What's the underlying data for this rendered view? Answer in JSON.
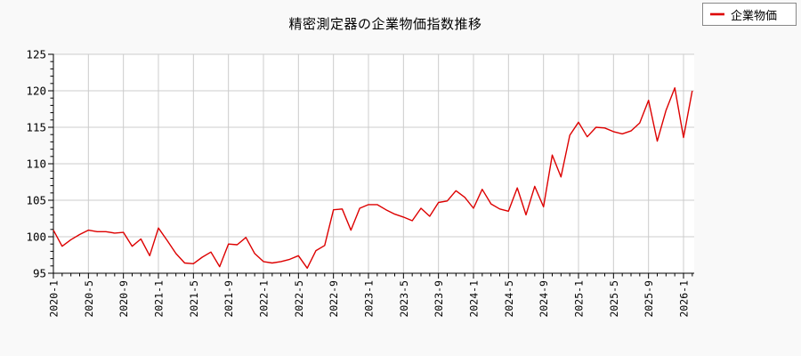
{
  "title": "精密測定器の企業物価指数推移",
  "legend": {
    "label": "企業物価"
  },
  "colors": {
    "line": "#dd0000",
    "grid": "#cccccc",
    "axis": "#000000",
    "plot_background": "#ffffff",
    "page_background": "#f9f9f9",
    "legend_border": "#888888",
    "text": "#000000"
  },
  "chart_data": {
    "type": "line",
    "title": "精密測定器の企業物価指数推移",
    "xlabel": "",
    "ylabel": "",
    "grid": true,
    "legend_position": "top-right-outside",
    "ylim": [
      95,
      125
    ],
    "y_ticks": [
      95,
      100,
      105,
      110,
      115,
      120,
      125
    ],
    "y_minor_step": 1,
    "x_tick_interval_months": 4,
    "x_tick_labels": [
      "2020-1",
      "2020-5",
      "2020-9",
      "2021-1",
      "2021-5",
      "2021-9",
      "2022-1",
      "2022-5",
      "2022-9",
      "2023-1",
      "2023-5",
      "2023-9",
      "2024-1",
      "2024-5",
      "2024-9",
      "2025-1",
      "2025-5",
      "2025-9",
      "2026-1"
    ],
    "categories": [
      "2020-1",
      "2020-2",
      "2020-3",
      "2020-4",
      "2020-5",
      "2020-6",
      "2020-7",
      "2020-8",
      "2020-9",
      "2020-10",
      "2020-11",
      "2020-12",
      "2021-1",
      "2021-2",
      "2021-3",
      "2021-4",
      "2021-5",
      "2021-6",
      "2021-7",
      "2021-8",
      "2021-9",
      "2021-10",
      "2021-11",
      "2021-12",
      "2022-1",
      "2022-2",
      "2022-3",
      "2022-4",
      "2022-5",
      "2022-6",
      "2022-7",
      "2022-8",
      "2022-9",
      "2022-10",
      "2022-11",
      "2022-12",
      "2023-1",
      "2023-2",
      "2023-3",
      "2023-4",
      "2023-5",
      "2023-6",
      "2023-7",
      "2023-8",
      "2023-9",
      "2023-10",
      "2023-11",
      "2023-12",
      "2024-1",
      "2024-2",
      "2024-3",
      "2024-4",
      "2024-5",
      "2024-6",
      "2024-7",
      "2024-8",
      "2024-9",
      "2024-10",
      "2024-11",
      "2024-12",
      "2025-1",
      "2025-2",
      "2025-3",
      "2025-4",
      "2025-5",
      "2025-6",
      "2025-7",
      "2025-8",
      "2025-9",
      "2025-10",
      "2025-11",
      "2025-12",
      "2026-1",
      "2026-2"
    ],
    "series": [
      {
        "name": "企業物価",
        "values": [
          100.9,
          98.7,
          99.6,
          100.3,
          100.9,
          100.7,
          100.7,
          100.5,
          100.6,
          98.7,
          99.7,
          97.4,
          101.2,
          99.5,
          97.7,
          96.4,
          96.3,
          97.2,
          97.9,
          95.9,
          99.0,
          98.9,
          99.9,
          97.7,
          96.6,
          96.4,
          96.6,
          96.9,
          97.4,
          95.7,
          98.1,
          98.8,
          103.7,
          103.8,
          100.9,
          103.9,
          104.4,
          104.4,
          103.7,
          103.1,
          102.7,
          102.2,
          103.9,
          102.8,
          104.7,
          104.9,
          106.3,
          105.4,
          103.9,
          106.5,
          104.5,
          103.8,
          103.5,
          106.7,
          103.0,
          106.9,
          104.1,
          111.2,
          108.2,
          113.9,
          115.7,
          113.7,
          115.0,
          114.9,
          114.4,
          114.1,
          114.5,
          115.6,
          118.7,
          113.1,
          117.3,
          120.4,
          113.6,
          120.0
        ]
      }
    ]
  }
}
